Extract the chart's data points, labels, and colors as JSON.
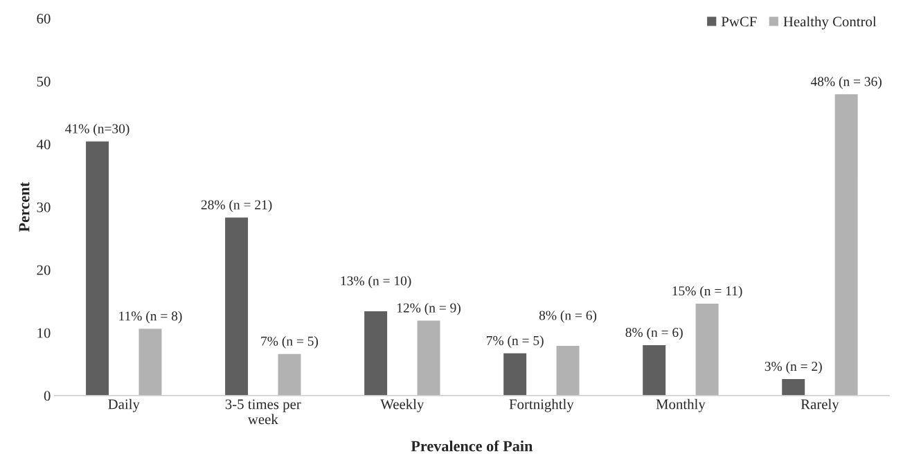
{
  "chart_data": {
    "type": "bar",
    "xlabel": "Prevalence of Pain",
    "ylabel": "Percent",
    "categories": [
      "Daily",
      "3-5 times per\nweek",
      "Weekly",
      "Fortnightly",
      "Monthly",
      "Rarely"
    ],
    "series": [
      {
        "name": "PwCF",
        "color": "#5f5f5f",
        "values": [
          40.5,
          28.4,
          13.5,
          6.8,
          8.1,
          2.7
        ],
        "value_labels": [
          "41% (n=30)",
          "28% (n = 21)",
          "13% (n = 10)",
          "7% (n = 5)",
          "8% (n = 6)",
          "3% (n = 2)"
        ]
      },
      {
        "name": "Healthy Control",
        "color": "#b2b2b2",
        "values": [
          10.7,
          6.7,
          12.0,
          8.0,
          14.7,
          48.0
        ],
        "value_labels": [
          "11% (n = 8)",
          "7% (n = 5)",
          "12% (n = 9)",
          "8% (n = 6)",
          "15% (n = 11)",
          "48% (n = 36)"
        ]
      }
    ],
    "ylim": [
      0,
      60
    ],
    "yticks": [
      0,
      10,
      20,
      30,
      40,
      50,
      60
    ],
    "grid": false,
    "legend": "top right"
  }
}
